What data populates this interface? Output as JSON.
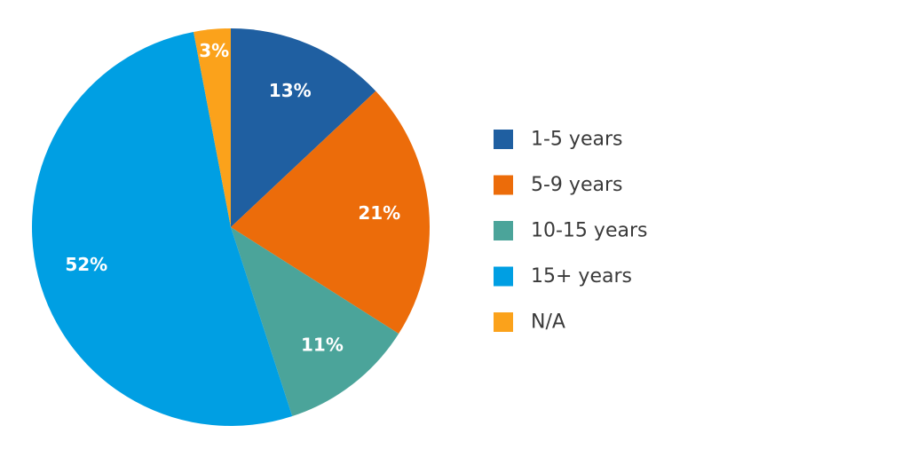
{
  "chart_data": {
    "type": "pie",
    "categories": [
      "1-5 years",
      "5-9 years",
      "10-15 years",
      "15+ years",
      "N/A"
    ],
    "values": [
      13,
      21,
      11,
      52,
      3
    ],
    "labels": [
      "13%",
      "21%",
      "11%",
      "52%",
      "3%"
    ],
    "colors": [
      "#1f5fa1",
      "#ec6c0a",
      "#4ba49a",
      "#009fe3",
      "#fba21b"
    ],
    "legend_position": "right",
    "start": "top",
    "direction": "clockwise"
  }
}
